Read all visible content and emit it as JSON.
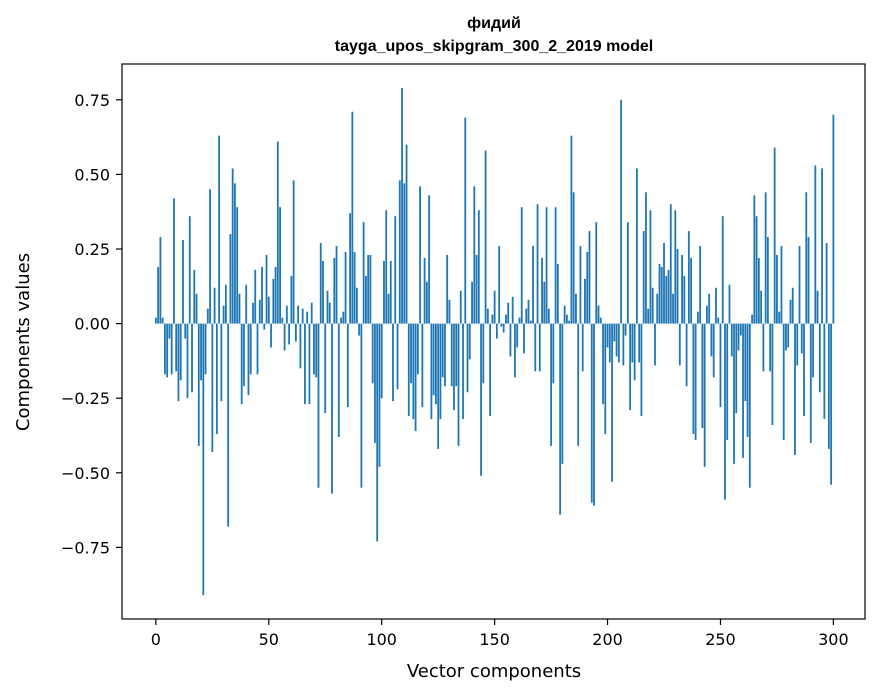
{
  "chart_data": {
    "type": "bar",
    "title": "фидий",
    "subtitle": "tayga_upos_skipgram_300_2_2019 model",
    "xlabel": "Vector components",
    "ylabel": "Components values",
    "xlim": [
      -15,
      314
    ],
    "ylim": [
      -0.99,
      0.87
    ],
    "xticks": [
      0,
      50,
      100,
      150,
      200,
      250,
      300
    ],
    "yticks": [
      -0.75,
      -0.5,
      -0.25,
      0.0,
      0.25,
      0.5,
      0.75
    ],
    "xtick_labels": [
      "0",
      "50",
      "100",
      "150",
      "200",
      "250",
      "300"
    ],
    "ytick_labels": [
      "−0.75",
      "−0.50",
      "−0.25",
      "0.00",
      "0.25",
      "0.50",
      "0.75"
    ],
    "grid": false,
    "bar_color": "#1f77b4",
    "values": [
      0.02,
      0.19,
      0.29,
      0.02,
      -0.17,
      -0.18,
      -0.05,
      -0.17,
      0.42,
      -0.16,
      -0.26,
      -0.19,
      0.28,
      -0.05,
      -0.25,
      0.36,
      -0.23,
      0.18,
      0.1,
      -0.41,
      -0.19,
      -0.91,
      -0.17,
      0.05,
      0.45,
      -0.43,
      0.12,
      -0.37,
      0.63,
      -0.26,
      0.06,
      0.13,
      -0.68,
      0.3,
      0.52,
      0.47,
      0.39,
      0.1,
      -0.27,
      -0.21,
      0.13,
      -0.24,
      -0.17,
      0.07,
      0.18,
      -0.17,
      0.08,
      0.19,
      -0.02,
      0.23,
      0.09,
      -0.08,
      0.15,
      0.19,
      0.61,
      0.39,
      0.02,
      -0.09,
      0.06,
      -0.07,
      0.16,
      0.48,
      -0.06,
      0.06,
      -0.15,
      0.05,
      -0.27,
      0.04,
      -0.27,
      0.07,
      -0.17,
      -0.18,
      -0.55,
      0.27,
      0.21,
      -0.3,
      0.11,
      0.07,
      -0.57,
      0.22,
      0.26,
      -0.38,
      0.02,
      0.04,
      0.24,
      -0.28,
      0.37,
      0.71,
      0.24,
      0.12,
      -0.04,
      -0.55,
      0.34,
      0.16,
      0.23,
      0.23,
      -0.2,
      -0.4,
      -0.73,
      -0.48,
      -0.25,
      0.21,
      0.38,
      0.1,
      0.21,
      -0.26,
      0.36,
      -0.22,
      0.48,
      0.79,
      0.47,
      0.6,
      -0.31,
      -0.2,
      -0.32,
      -0.36,
      -0.17,
      0.46,
      -0.28,
      0.22,
      0.14,
      0.43,
      -0.32,
      -0.24,
      -0.27,
      -0.42,
      -0.32,
      -0.18,
      -0.21,
      0.23,
      0.08,
      -0.21,
      -0.29,
      -0.21,
      -0.41,
      0.11,
      -0.32,
      0.69,
      -0.23,
      -0.12,
      0.14,
      0.46,
      0.23,
      0.38,
      -0.51,
      -0.2,
      0.58,
      0.05,
      -0.31,
      0.03,
      0.11,
      -0.05,
      0.26,
      -0.01,
      -0.03,
      0.03,
      0.07,
      -0.11,
      0.09,
      -0.18,
      -0.08,
      0.02,
      0.39,
      -0.1,
      0.05,
      0.08,
      0.01,
      0.26,
      -0.16,
      0.4,
      -0.16,
      0.22,
      0.14,
      0.39,
      0.05,
      -0.41,
      -0.2,
      0.39,
      0.2,
      -0.64,
      -0.47,
      0.06,
      0.03,
      0.01,
      0.63,
      0.44,
      0.1,
      -0.41,
      0.26,
      -0.16,
      0.15,
      0.24,
      0.31,
      -0.6,
      -0.61,
      0.34,
      0.06,
      0.02,
      -0.27,
      -0.37,
      -0.08,
      -0.13,
      -0.53,
      -0.06,
      -0.11,
      -0.13,
      0.75,
      -0.14,
      -0.04,
      0.34,
      -0.29,
      -0.13,
      -0.19,
      0.52,
      -0.13,
      -0.31,
      0.31,
      0.44,
      0.05,
      0.38,
      0.12,
      -0.14,
      0.1,
      0.2,
      0.19,
      0.27,
      0.16,
      0.18,
      0.4,
      0.1,
      0.38,
      0.25,
      -0.14,
      0.23,
      0.16,
      -0.21,
      0.31,
      0.22,
      -0.37,
      -0.39,
      0.04,
      0.26,
      -0.35,
      -0.48,
      0.06,
      0.1,
      -0.11,
      -0.18,
      0.12,
      0.02,
      -0.28,
      0.36,
      -0.59,
      -0.39,
      0.13,
      -0.11,
      -0.47,
      -0.3,
      -0.09,
      -0.04,
      -0.45,
      -0.26,
      -0.38,
      -0.55,
      0.03,
      0.43,
      0.36,
      0.22,
      0.11,
      -0.16,
      0.44,
      0.29,
      -0.16,
      -0.34,
      0.59,
      0.23,
      0.04,
      0.26,
      -0.39,
      -0.09,
      -0.08,
      0.08,
      0.12,
      -0.44,
      -0.14,
      0.26,
      -0.1,
      -0.31,
      0.44,
      0.29,
      -0.4,
      -0.18,
      0.53,
      0.11,
      -0.23,
      0.52,
      -0.32,
      0.27,
      -0.42,
      -0.54,
      0.7
    ]
  }
}
